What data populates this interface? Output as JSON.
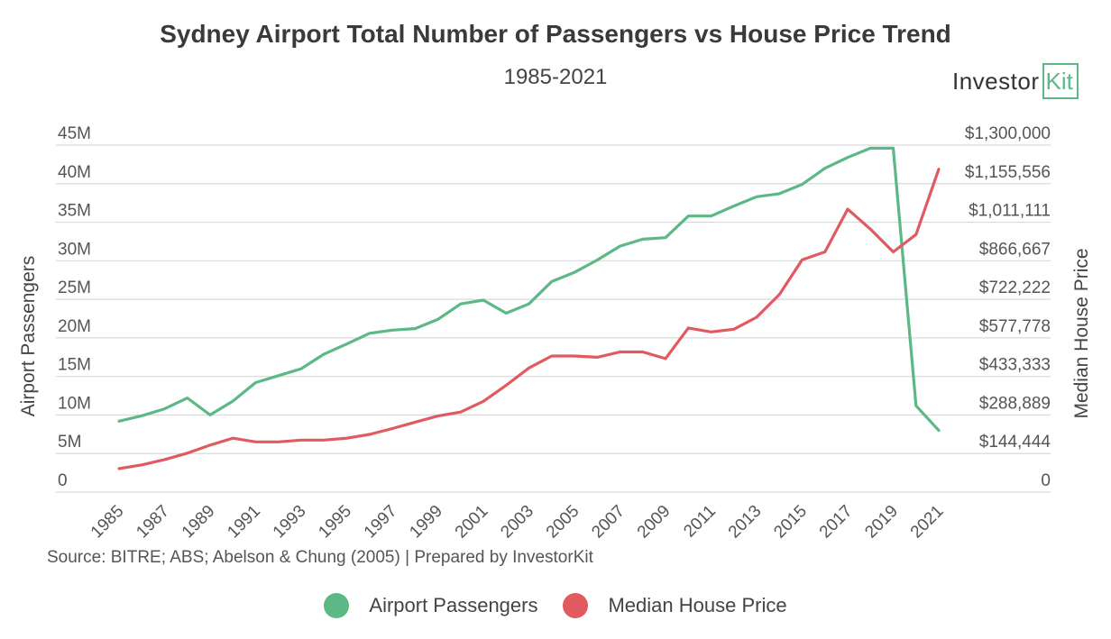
{
  "chart_data": {
    "type": "line",
    "title": "Sydney Airport Total Number of Passengers vs House Price Trend",
    "subtitle": "1985-2021",
    "x": [
      1985,
      1986,
      1987,
      1988,
      1989,
      1990,
      1991,
      1992,
      1993,
      1994,
      1995,
      1996,
      1997,
      1998,
      1999,
      2000,
      2001,
      2002,
      2003,
      2004,
      2005,
      2006,
      2007,
      2008,
      2009,
      2010,
      2011,
      2012,
      2013,
      2014,
      2015,
      2016,
      2017,
      2018,
      2019,
      2020,
      2021
    ],
    "x_tick_labels": [
      "1985",
      "1987",
      "1989",
      "1991",
      "1993",
      "1995",
      "1997",
      "1999",
      "2001",
      "2003",
      "2005",
      "2007",
      "2009",
      "2011",
      "2013",
      "2015",
      "2017",
      "2019",
      "2021"
    ],
    "y_left": {
      "label": "Airport Passengers",
      "lim": [
        0,
        45000000
      ],
      "ticks": [
        0,
        5000000,
        10000000,
        15000000,
        20000000,
        25000000,
        30000000,
        35000000,
        40000000,
        45000000
      ],
      "tick_labels": [
        "0",
        "5M",
        "10M",
        "15M",
        "20M",
        "25M",
        "30M",
        "35M",
        "40M",
        "45M"
      ]
    },
    "y_right": {
      "label": "Median House Price",
      "lim": [
        0,
        1300000
      ],
      "tick_labels": [
        "0",
        "$144,444",
        "$288,889",
        "$433,333",
        "$577,778",
        "$722,222",
        "$866,667",
        "$1,011,111",
        "$1,155,556",
        "$1,300,000"
      ]
    },
    "series": [
      {
        "name": "Airport Passengers",
        "axis": "left",
        "color": "#5cb885",
        "values": [
          9200000,
          9900000,
          10800000,
          12200000,
          10000000,
          11800000,
          14200000,
          15100000,
          16000000,
          17900000,
          19200000,
          20600000,
          21000000,
          21200000,
          22400000,
          24400000,
          24900000,
          23200000,
          24400000,
          27300000,
          28500000,
          30100000,
          31900000,
          32800000,
          33000000,
          35800000,
          35800000,
          37100000,
          38300000,
          38700000,
          39900000,
          42000000,
          43400000,
          44600000,
          44600000,
          11200000,
          8000000
        ]
      },
      {
        "name": "Median House Price",
        "axis": "right",
        "color": "#e05a5f",
        "values": [
          88000,
          102000,
          122000,
          146000,
          176000,
          202000,
          188000,
          188000,
          195000,
          195000,
          202000,
          216000,
          238000,
          262000,
          285000,
          300000,
          340000,
          400000,
          465000,
          510000,
          510000,
          505000,
          525000,
          525000,
          500000,
          615000,
          600000,
          610000,
          655000,
          740000,
          870000,
          900000,
          1060000,
          985000,
          900000,
          965000,
          1210000
        ]
      }
    ]
  },
  "source_text": "Source: BITRE; ABS; Abelson & Chung (2005) | Prepared by InvestorKit",
  "logo": {
    "word": "Investor",
    "boxed": "Kit"
  },
  "colors": {
    "grid": "#d9d9d9",
    "passengers": "#5cb885",
    "price": "#e05a5f"
  }
}
